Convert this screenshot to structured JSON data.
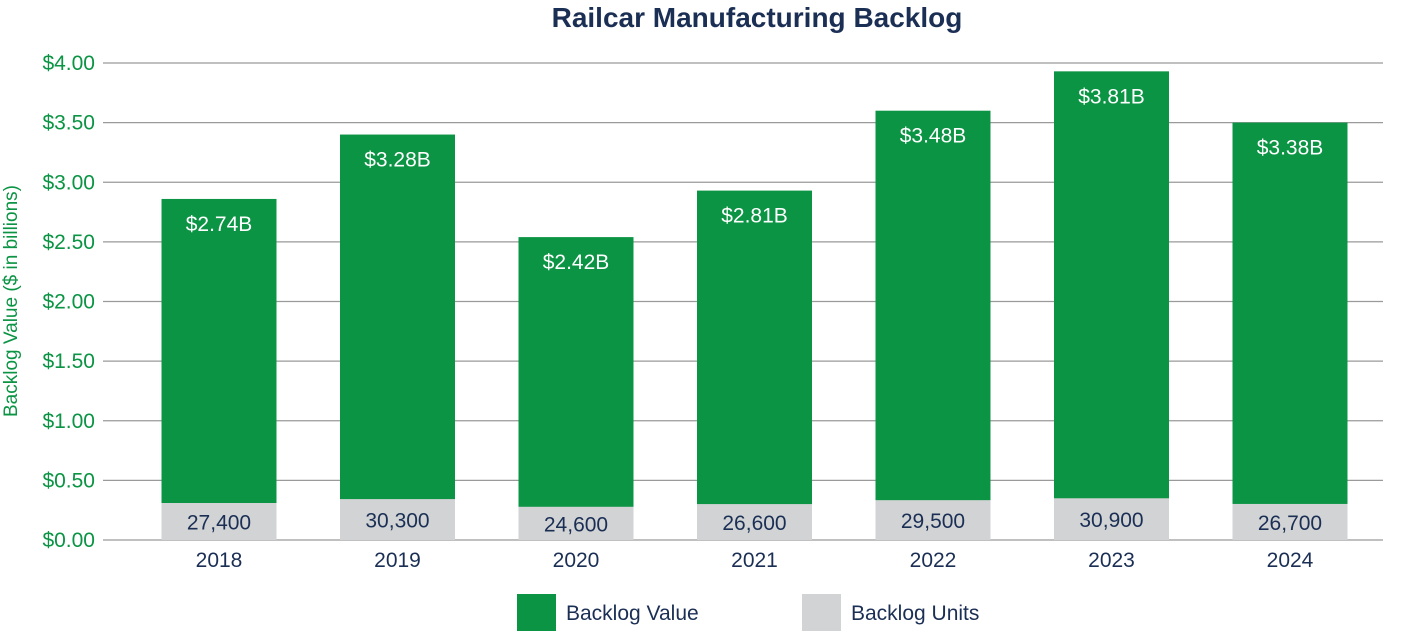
{
  "chart_data": {
    "type": "bar",
    "title": "Railcar Manufacturing Backlog",
    "ylabel": "Backlog Value ($ in billions)",
    "xlabel": "",
    "ylim": [
      0,
      4
    ],
    "yticks": [
      0,
      0.5,
      1,
      1.5,
      2,
      2.5,
      3,
      3.5,
      4
    ],
    "ytick_labels": [
      "$0.00",
      "$0.50",
      "$1.00",
      "$1.50",
      "$2.00",
      "$2.50",
      "$3.00",
      "$3.50",
      "$4.00"
    ],
    "grid": true,
    "categories": [
      "2018",
      "2019",
      "2020",
      "2021",
      "2022",
      "2023",
      "2024"
    ],
    "series": [
      {
        "name": "Backlog Value",
        "color": "#0b9444",
        "values": [
          2.74,
          3.28,
          2.42,
          2.81,
          3.48,
          3.81,
          3.38
        ],
        "labels": [
          "$2.74B",
          "$3.28B",
          "$2.42B",
          "$2.81B",
          "$3.48B",
          "$3.81B",
          "$3.38B"
        ]
      },
      {
        "name": "Backlog Units",
        "color": "#d1d3d4",
        "values": [
          27400,
          30300,
          24600,
          26600,
          29500,
          30900,
          26700
        ],
        "labels": [
          "27,400",
          "30,300",
          "24,600",
          "26,600",
          "29,500",
          "30,900",
          "26,700"
        ]
      }
    ],
    "legend": {
      "position": "bottom-center",
      "entries": [
        "Backlog Value",
        "Backlog Units"
      ]
    }
  }
}
